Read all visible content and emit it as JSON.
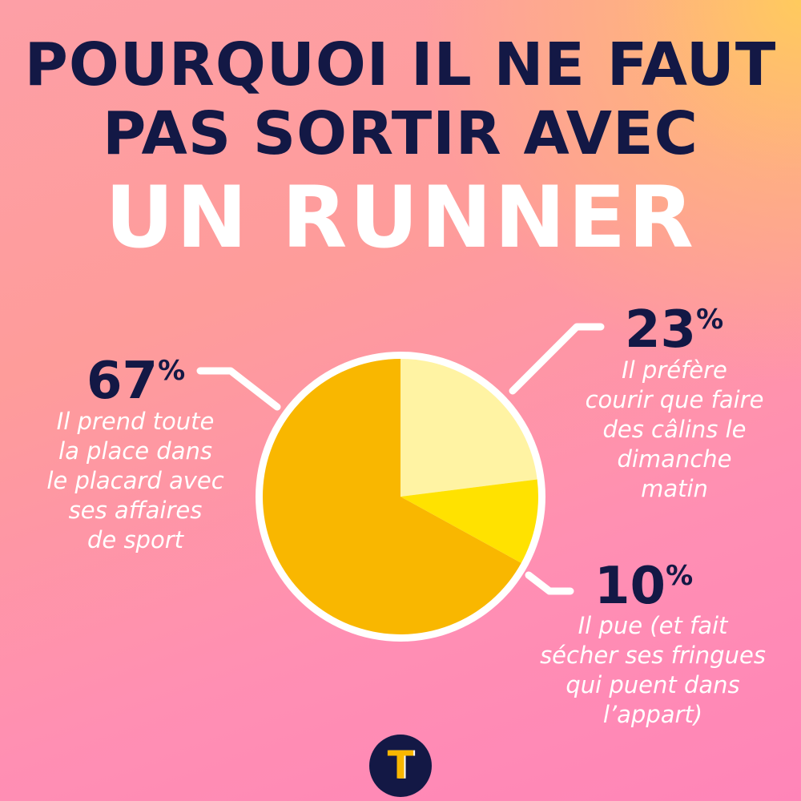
{
  "title": {
    "line1": "POURQUOI IL NE FAUT",
    "line2": "PAS SORTIR AVEC",
    "line3": "UN RUNNER"
  },
  "chart_data": {
    "type": "pie",
    "slices": [
      {
        "value": 23,
        "percent_number": "23",
        "percent_symbol": "%",
        "label": "Il préfère\ncourir que faire\ndes câlins le\ndimanche\nmatin",
        "color": "#fff3a3"
      },
      {
        "value": 10,
        "percent_number": "10",
        "percent_symbol": "%",
        "label": "Il pue (et fait\nsécher ses fringues\nqui puent dans\nl’appart)",
        "color": "#ffe200"
      },
      {
        "value": 67,
        "percent_number": "67",
        "percent_symbol": "%",
        "label": "Il prend toute\nla place dans\nle placard avec\nses affaires\nde sport",
        "color": "#f9b700"
      }
    ]
  },
  "logo": {
    "letter": "T"
  },
  "colors": {
    "navy": "#131845",
    "white": "#ffffff"
  }
}
